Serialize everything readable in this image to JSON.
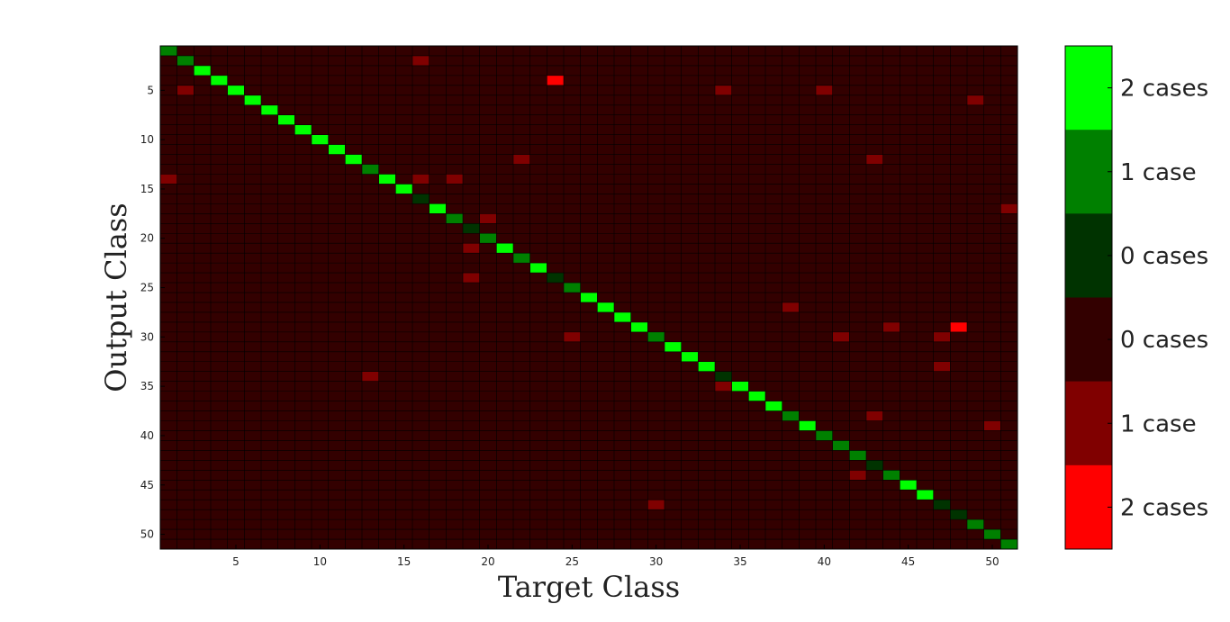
{
  "chart_data": {
    "type": "heatmap",
    "title": "",
    "xlabel": "Target Class",
    "ylabel": "Output Class",
    "n_classes": 51,
    "x_ticks": [
      5,
      10,
      15,
      20,
      25,
      30,
      35,
      40,
      45,
      50
    ],
    "y_ticks": [
      5,
      10,
      15,
      20,
      25,
      30,
      35,
      40,
      45,
      50
    ],
    "diagonal_counts": [
      1,
      1,
      2,
      2,
      2,
      2,
      2,
      2,
      2,
      2,
      2,
      2,
      1,
      2,
      2,
      0,
      2,
      1,
      0,
      1,
      2,
      1,
      2,
      0,
      1,
      2,
      2,
      2,
      2,
      1,
      2,
      2,
      2,
      0,
      2,
      2,
      2,
      1,
      2,
      1,
      1,
      1,
      0,
      1,
      2,
      2,
      0,
      0,
      1,
      1,
      1
    ],
    "off_diagonal": [
      {
        "target": 16,
        "output": 2,
        "count": 1
      },
      {
        "target": 24,
        "output": 4,
        "count": 2
      },
      {
        "target": 2,
        "output": 5,
        "count": 1
      },
      {
        "target": 34,
        "output": 5,
        "count": 1
      },
      {
        "target": 40,
        "output": 5,
        "count": 1
      },
      {
        "target": 49,
        "output": 6,
        "count": 1
      },
      {
        "target": 22,
        "output": 12,
        "count": 1
      },
      {
        "target": 43,
        "output": 12,
        "count": 1
      },
      {
        "target": 1,
        "output": 14,
        "count": 1
      },
      {
        "target": 16,
        "output": 14,
        "count": 1
      },
      {
        "target": 18,
        "output": 14,
        "count": 1
      },
      {
        "target": 51,
        "output": 17,
        "count": 1
      },
      {
        "target": 20,
        "output": 18,
        "count": 1
      },
      {
        "target": 19,
        "output": 21,
        "count": 1
      },
      {
        "target": 19,
        "output": 24,
        "count": 1
      },
      {
        "target": 38,
        "output": 27,
        "count": 1
      },
      {
        "target": 44,
        "output": 29,
        "count": 1
      },
      {
        "target": 48,
        "output": 29,
        "count": 2
      },
      {
        "target": 25,
        "output": 30,
        "count": 1
      },
      {
        "target": 41,
        "output": 30,
        "count": 1
      },
      {
        "target": 47,
        "output": 30,
        "count": 1
      },
      {
        "target": 47,
        "output": 33,
        "count": 1
      },
      {
        "target": 13,
        "output": 34,
        "count": 1
      },
      {
        "target": 34,
        "output": 35,
        "count": 1
      },
      {
        "target": 43,
        "output": 38,
        "count": 1
      },
      {
        "target": 50,
        "output": 39,
        "count": 1
      },
      {
        "target": 42,
        "output": 44,
        "count": 1
      },
      {
        "target": 30,
        "output": 47,
        "count": 1
      }
    ],
    "colorbar": [
      {
        "label": "2 cases",
        "color": "#00ff00"
      },
      {
        "label": "1 case",
        "color": "#008000"
      },
      {
        "label": "0 cases",
        "color": "#003300"
      },
      {
        "label": "0 cases",
        "color": "#330000"
      },
      {
        "label": "1 case",
        "color": "#800000"
      },
      {
        "label": "2 cases",
        "color": "#ff0000"
      }
    ],
    "colors": {
      "correct": {
        "0": "#003300",
        "1": "#008000",
        "2": "#00ff00"
      },
      "incorrect": {
        "0": "#330000",
        "1": "#800000",
        "2": "#ff0000"
      },
      "grid_line": "#000000"
    },
    "grid": true,
    "legend_placement": "right"
  }
}
